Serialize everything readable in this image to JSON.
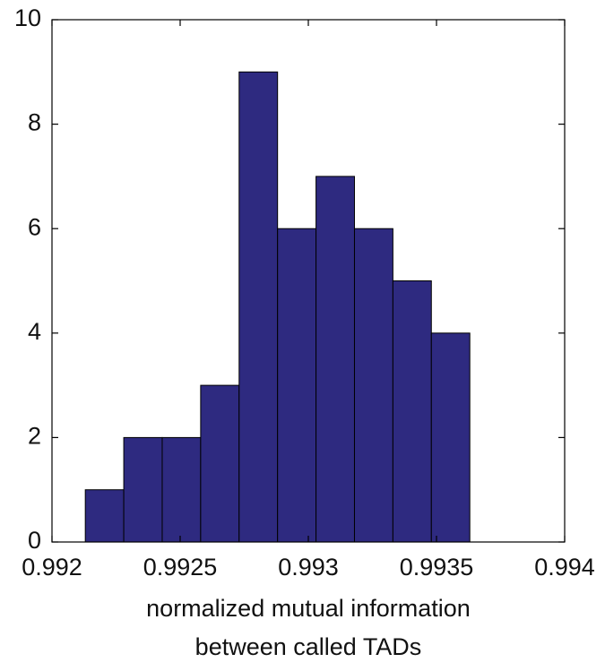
{
  "chart_data": {
    "type": "histogram",
    "xlabel": [
      "normalized mutual information",
      "between called TADs"
    ],
    "bins": [
      0.99213,
      0.99228,
      0.99243,
      0.99258,
      0.99273,
      0.99288,
      0.99303,
      0.99318,
      0.99333,
      0.99348,
      0.99363
    ],
    "counts": [
      1,
      2,
      2,
      3,
      9,
      6,
      7,
      6,
      5,
      4
    ],
    "color": "#2e2a80",
    "xlim": [
      0.992,
      0.994
    ],
    "xticks": [
      0.992,
      0.9925,
      0.993,
      0.9935,
      0.994
    ],
    "ylim": [
      0,
      10
    ],
    "yticks": [
      0,
      2,
      4,
      6,
      8,
      10
    ],
    "grid": false
  }
}
